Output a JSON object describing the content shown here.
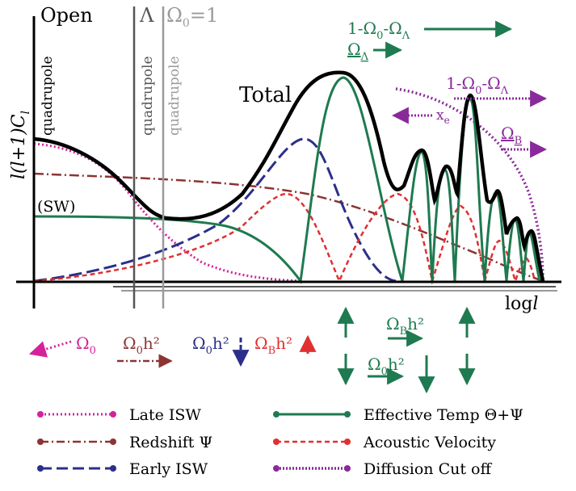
{
  "labels": {
    "open": "Open",
    "lambda": "Λ",
    "omega_eq_one": "Ω",
    "omega_eq_one_sub": "0",
    "omega_eq_one_rest": "=1",
    "quadrupole": "quadrupole",
    "y_axis": "l(l+1)C",
    "y_axis_sub": "l",
    "sw": "(SW)",
    "total": "Total",
    "x_axis": "log",
    "x_axis_italic": "l",
    "one_minus_top": "1-Ω",
    "one_minus_top_sub1": "0",
    "one_minus_top_mid": "-Ω",
    "one_minus_top_sub2": "Λ",
    "omega_lambda": "Ω",
    "omega_lambda_sub": "Λ",
    "one_minus_right": "1-Ω",
    "one_minus_right_sub1": "0",
    "one_minus_right_mid": "-Ω",
    "one_minus_right_sub2": "Λ",
    "xe": "x",
    "xe_sub": "e",
    "omega_b": "Ω",
    "omega_b_sub": "B",
    "omega0": "Ω",
    "omega0_sub": "0",
    "omega0h2_a": "Ω",
    "omega0h2_a_sub": "0",
    "omega0h2_a_rest": "h²",
    "omega0h2_b": "Ω",
    "omega0h2_b_sub": "0",
    "omega0h2_b_rest": "h²",
    "omegabh2_left": "Ω",
    "omegabh2_left_sub": "B",
    "omegabh2_left_rest": "h²",
    "omegabh2_right": "Ω",
    "omegabh2_right_sub": "B",
    "omegabh2_right_rest": "h²",
    "omega0h2_right": "Ω",
    "omega0h2_right_sub": "0",
    "omega0h2_right_rest": "h²"
  },
  "legend": {
    "late_isw": "Late ISW",
    "redshift": "Redshift Ψ",
    "early_isw": "Early ISW",
    "effective_temp": "Effective Temp Θ+Ψ",
    "acoustic_velocity": "Acoustic Velocity",
    "diffusion": "Diffusion Cut off"
  },
  "colors": {
    "total": "#000000",
    "green": "#1e7a50",
    "magenta": "#d4229a",
    "brown": "#8c3434",
    "navy": "#2b2f8a",
    "red": "#e03030",
    "purple": "#8a2a9a",
    "gray": "#9a9a9a",
    "darkgray": "#555555"
  }
}
